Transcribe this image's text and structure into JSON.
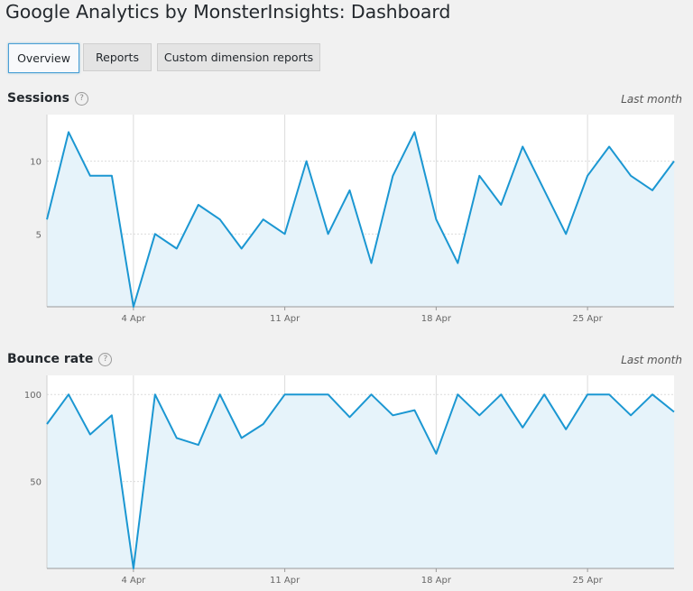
{
  "page": {
    "title": "Google Analytics by MonsterInsights: Dashboard"
  },
  "tabs": [
    {
      "label": "Overview",
      "active": true
    },
    {
      "label": "Reports",
      "active": false
    },
    {
      "label": "Custom dimension reports",
      "active": false
    }
  ],
  "colors": {
    "line": "#1b97d2",
    "fill": "#e6f3fa",
    "plot_bg": "#ffffff",
    "grid": "#dcdcdc",
    "accent_border": "#4a9fd6"
  },
  "icons": {
    "help": "question-circle-icon"
  },
  "help_glyph": "?",
  "chart_data": [
    {
      "type": "area",
      "title": "Sessions",
      "period_label": "Last month",
      "x_tick_labels": [
        "4 Apr",
        "11 Apr",
        "18 Apr",
        "25 Apr"
      ],
      "x_tick_days": [
        4,
        11,
        18,
        25
      ],
      "y_tick_labels": [
        "5",
        "10"
      ],
      "y_ticks": [
        5,
        10
      ],
      "ylim": [
        0,
        13.2
      ],
      "x_range": [
        0,
        29
      ],
      "x_days": [
        0,
        1,
        2,
        3,
        4,
        5,
        6,
        7,
        8,
        9,
        10,
        11,
        12,
        13,
        14,
        15,
        16,
        17,
        18,
        19,
        20,
        21,
        22,
        23,
        24,
        25,
        26,
        27,
        28,
        29
      ],
      "values": [
        6,
        12,
        9,
        9,
        0,
        5,
        4,
        7,
        6,
        4,
        6,
        5,
        10,
        5,
        8,
        3,
        9,
        12,
        6,
        3,
        9,
        7,
        11,
        8,
        5,
        9,
        11,
        9,
        8,
        10
      ]
    },
    {
      "type": "area",
      "title": "Bounce rate",
      "period_label": "Last month",
      "x_tick_labels": [
        "4 Apr",
        "11 Apr",
        "18 Apr",
        "25 Apr"
      ],
      "x_tick_days": [
        4,
        11,
        18,
        25
      ],
      "y_tick_labels": [
        "50",
        "100"
      ],
      "y_ticks": [
        50,
        100
      ],
      "ylim": [
        0,
        111
      ],
      "x_range": [
        0,
        29
      ],
      "x_days": [
        0,
        1,
        2,
        3,
        4,
        5,
        6,
        7,
        8,
        9,
        10,
        11,
        12,
        13,
        14,
        15,
        16,
        17,
        18,
        19,
        20,
        21,
        22,
        23,
        24,
        25,
        26,
        27,
        28,
        29
      ],
      "values": [
        83,
        100,
        77,
        88,
        0,
        100,
        75,
        71,
        100,
        75,
        83,
        100,
        100,
        100,
        87,
        100,
        88,
        91,
        66,
        100,
        88,
        100,
        81,
        100,
        80,
        100,
        100,
        88,
        100,
        90
      ]
    }
  ]
}
